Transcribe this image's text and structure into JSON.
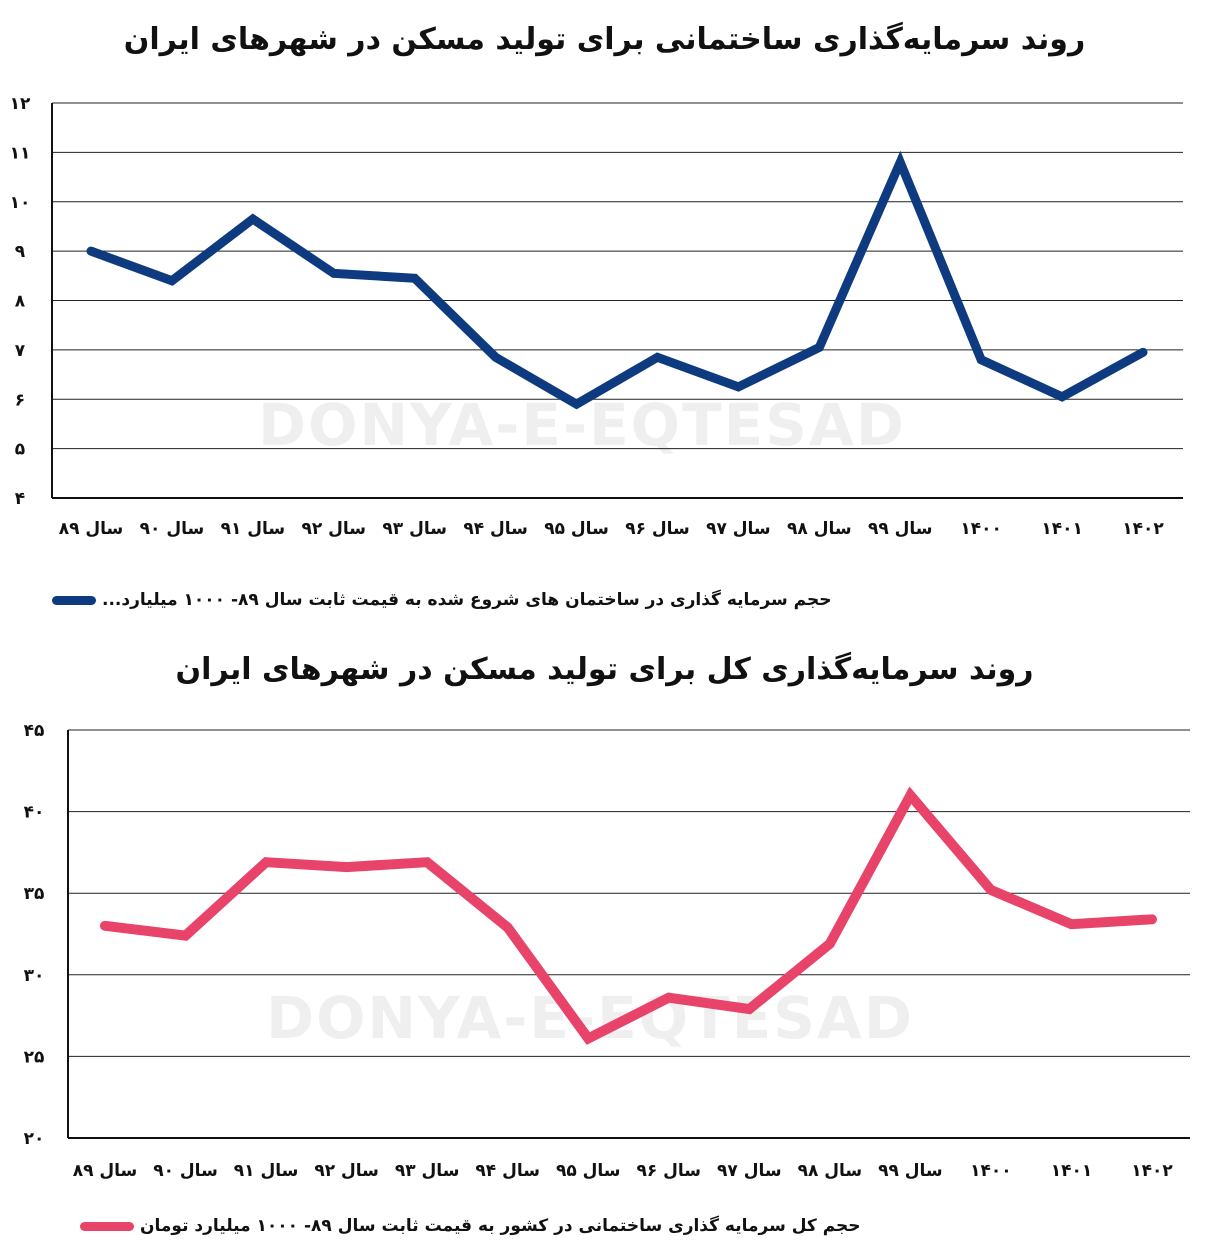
{
  "chart_data": [
    {
      "type": "line",
      "title": "روند سرمایه‌گذاری ساختمانی برای تولید مسکن در شهرهای ایران",
      "categories": [
        "سال ۸۹",
        "سال ۹۰",
        "سال ۹۱",
        "سال ۹۲",
        "سال ۹۳",
        "سال ۹۴",
        "سال ۹۵",
        "سال ۹۶",
        "سال ۹۷",
        "سال ۹۸",
        "سال ۹۹",
        "۱۴۰۰",
        "۱۴۰۱",
        "۱۴۰۲"
      ],
      "series": [
        {
          "name": "حجم سرمایه گذاری در ساختمان های شروع شده به قیمت ثابت سال ۸۹- ۱۰۰۰ میلیارد...",
          "color": "#0e3a80",
          "values": [
            9.0,
            8.4,
            9.65,
            8.55,
            8.45,
            6.85,
            5.9,
            6.85,
            6.25,
            7.05,
            10.8,
            6.8,
            6.05,
            6.95
          ]
        }
      ],
      "ylim": [
        4,
        12
      ],
      "yticks": [
        "۴",
        "۵",
        "۶",
        "۷",
        "۸",
        "۹",
        "۱۰",
        "۱۱",
        "۱۲"
      ],
      "grid": true,
      "legend": "bottom-left",
      "watermark": "DONYA-E-EQTESAD"
    },
    {
      "type": "line",
      "title": "روند سرمایه‌گذاری کل برای تولید مسکن در شهرهای ایران",
      "categories": [
        "سال ۸۹",
        "سال ۹۰",
        "سال ۹۱",
        "سال ۹۲",
        "سال ۹۳",
        "سال ۹۴",
        "سال ۹۵",
        "سال ۹۶",
        "سال ۹۷",
        "سال ۹۸",
        "سال ۹۹",
        "۱۴۰۰",
        "۱۴۰۱",
        "۱۴۰۲"
      ],
      "series": [
        {
          "name": "حجم کل سرمایه گذاری ساختمانی در کشور به قیمت ثابت سال ۸۹- ۱۰۰۰ میلیارد تومان",
          "color": "#e8446a",
          "values": [
            33.0,
            32.4,
            36.9,
            36.6,
            36.9,
            32.9,
            26.1,
            28.6,
            27.9,
            31.9,
            41.0,
            35.2,
            33.1,
            33.4
          ]
        }
      ],
      "ylim": [
        20,
        45
      ],
      "yticks": [
        "۲۰",
        "۲۵",
        "۳۰",
        "۳۵",
        "۴۰",
        "۴۵"
      ],
      "grid": true,
      "legend": "bottom-left",
      "watermark": "DONYA-E-EQTESAD"
    }
  ]
}
